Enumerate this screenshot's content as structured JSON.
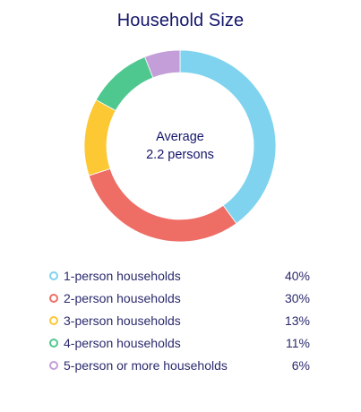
{
  "chart_data": {
    "type": "pie",
    "title": "Household Size",
    "center_label": {
      "line1": "Average",
      "line2": "2.2 persons"
    },
    "categories": [
      "1-person households",
      "2-person households",
      "3-person households",
      "4-person households",
      "5-person or more households"
    ],
    "values": [
      40,
      30,
      13,
      11,
      6
    ],
    "value_labels": [
      "40%",
      "30%",
      "13%",
      "11%",
      "6%"
    ],
    "colors": [
      "#7fd3ee",
      "#ee6e66",
      "#fcc834",
      "#4fc890",
      "#c39ed8"
    ],
    "legend_placement": "bottom"
  }
}
